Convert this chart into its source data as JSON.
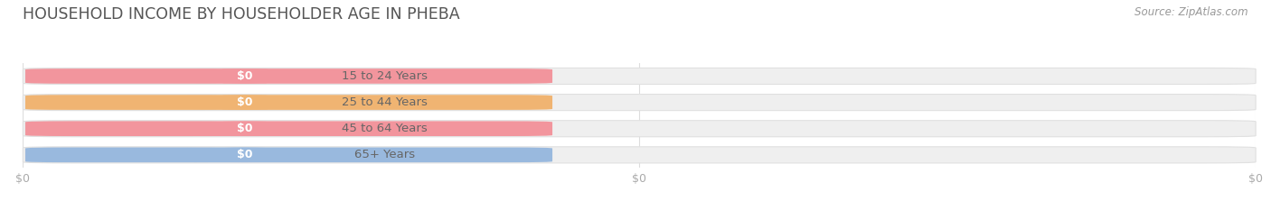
{
  "title": "HOUSEHOLD INCOME BY HOUSEHOLDER AGE IN PHEBA",
  "source": "Source: ZipAtlas.com",
  "categories": [
    "15 to 24 Years",
    "25 to 44 Years",
    "45 to 64 Years",
    "65+ Years"
  ],
  "values": [
    0,
    0,
    0,
    0
  ],
  "bar_colors": [
    "#f2959d",
    "#f0b472",
    "#f2959d",
    "#99b9de"
  ],
  "background_color": "#ffffff",
  "bar_bg_color": "#efefef",
  "bar_edge_color": "#e0e0e0",
  "title_fontsize": 12.5,
  "label_fontsize": 9.5,
  "source_fontsize": 8.5,
  "tick_fontsize": 9,
  "tick_color": "#aaaaaa",
  "label_color": "#666666",
  "title_color": "#555555",
  "source_color": "#999999",
  "grid_color": "#dddddd",
  "value_label": "$0"
}
